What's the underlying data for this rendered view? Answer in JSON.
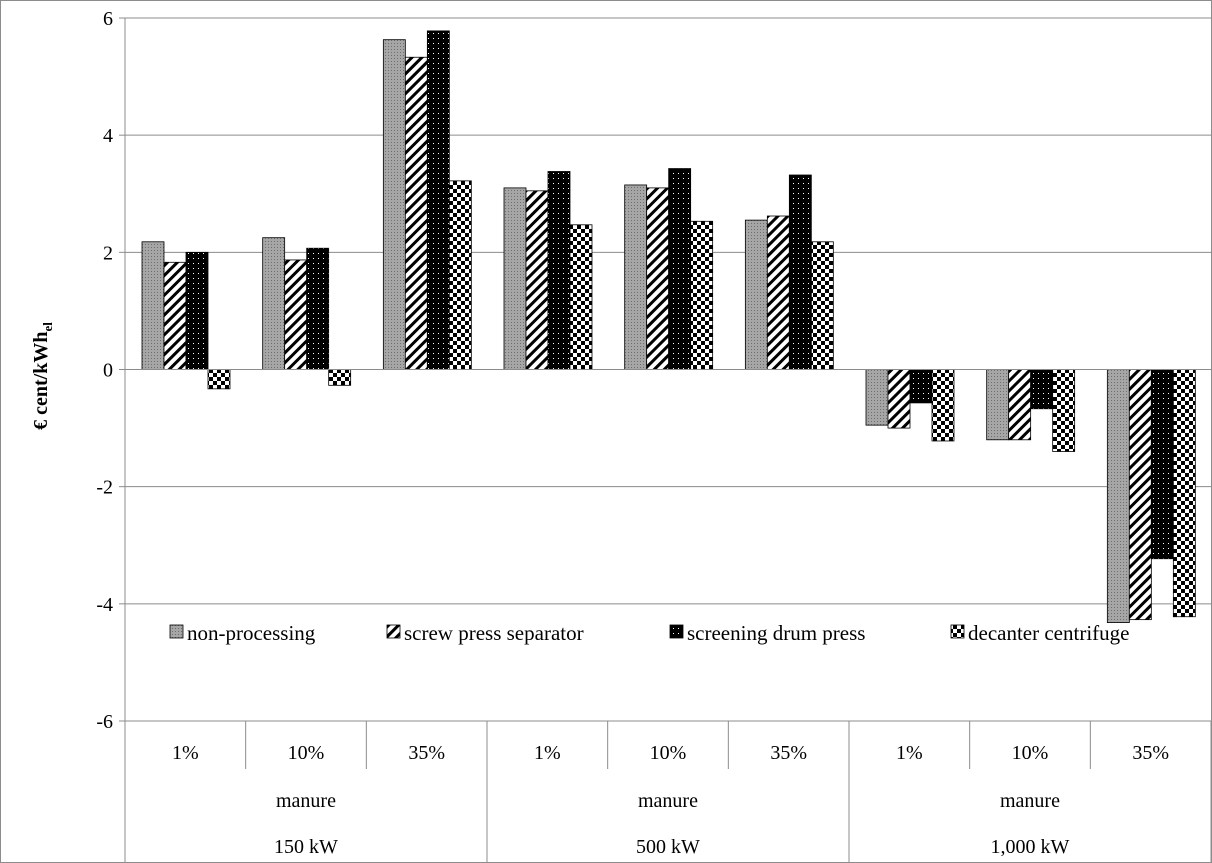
{
  "chart_data": {
    "type": "bar",
    "ylabel": "€ cent/kWh",
    "ylabel_sub": "el",
    "ylim": [
      -6,
      6
    ],
    "yticks": [
      -6,
      -4,
      -2,
      0,
      2,
      4,
      6
    ],
    "grid": true,
    "legend_position": "inside-lower-center",
    "categories": [
      "1%",
      "10%",
      "35%",
      "1%",
      "10%",
      "35%",
      "1%",
      "10%",
      "35%"
    ],
    "category_groups_mid": [
      "manure",
      "manure",
      "manure"
    ],
    "category_groups_outer": [
      "150 kW",
      "500 kW",
      "1,000 kW"
    ],
    "series": [
      {
        "name": "non-processing",
        "values": [
          2.18,
          2.25,
          5.63,
          3.1,
          3.15,
          2.55,
          -0.95,
          -1.2,
          -4.32
        ]
      },
      {
        "name": "screw press separator",
        "values": [
          1.83,
          1.87,
          5.33,
          3.05,
          3.1,
          2.62,
          -1.0,
          -1.2,
          -4.27
        ]
      },
      {
        "name": "screening drum press",
        "values": [
          2.0,
          2.07,
          5.78,
          3.38,
          3.43,
          3.32,
          -0.57,
          -0.67,
          -3.23
        ]
      },
      {
        "name": "decanter centrifuge",
        "values": [
          -0.33,
          -0.27,
          3.22,
          2.47,
          2.53,
          2.18,
          -1.22,
          -1.4,
          -4.22
        ]
      }
    ]
  }
}
